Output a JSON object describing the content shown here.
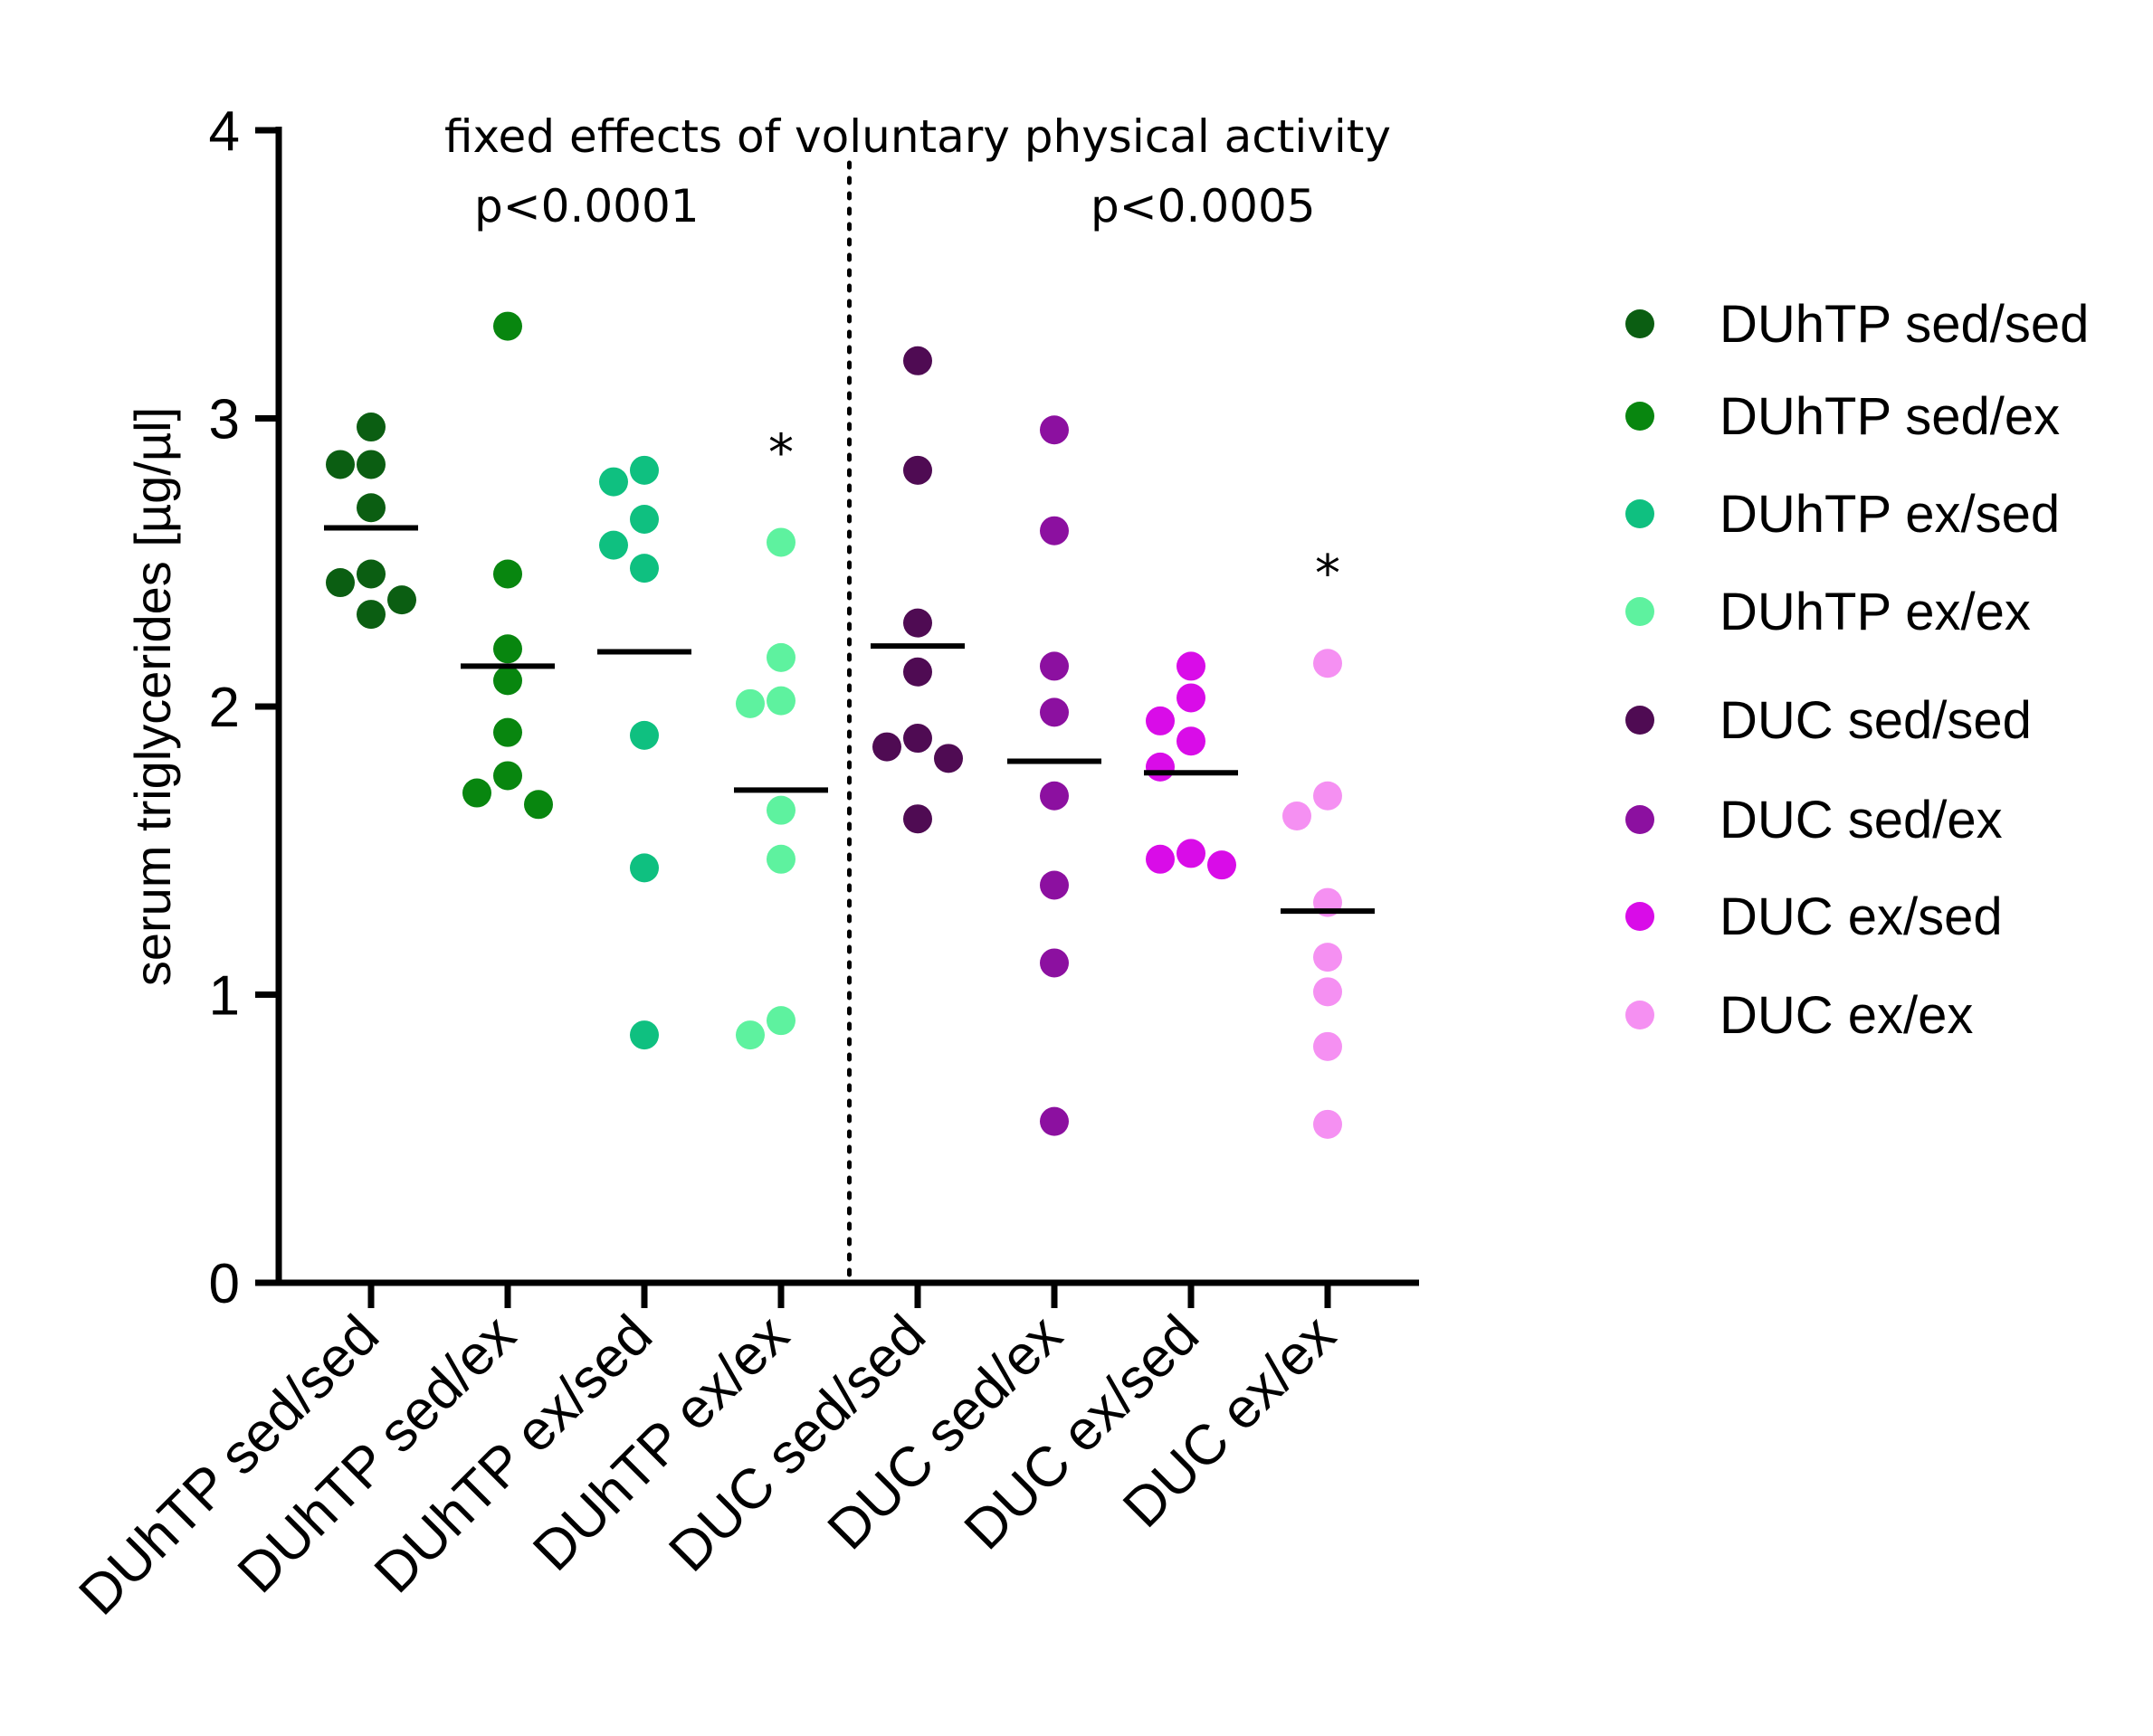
{
  "chart_data": {
    "type": "scatter",
    "title": "",
    "xlabel": "",
    "ylabel": "serum triglycerides [µg/µl]",
    "ylim": [
      0,
      4
    ],
    "yticks": [
      "0",
      "1",
      "2",
      "3",
      "4"
    ],
    "categories": [
      "DUhTP sed/sed",
      "DUhTP sed/ex",
      "DUhTP ex/sed",
      "DUhTP ex/ex",
      "DUC sed/sed",
      "DUC sed/ex",
      "DUC ex/sed",
      "DUC ex/ex"
    ],
    "series": [
      {
        "name": "DUhTP sed/sed",
        "color": "#0b5e12",
        "points": [
          2.97,
          2.84,
          2.84,
          2.69,
          2.46,
          2.43,
          2.37,
          2.32
        ],
        "mean": 2.62
      },
      {
        "name": "DUhTP sed/ex",
        "color": "#08860f",
        "points": [
          3.32,
          2.46,
          2.2,
          2.09,
          1.91,
          1.76,
          1.7,
          1.66
        ],
        "mean": 2.14
      },
      {
        "name": "DUhTP ex/sed",
        "color": "#0fc080",
        "points": [
          2.82,
          2.78,
          2.65,
          2.56,
          2.48,
          1.9,
          1.44,
          0.86
        ],
        "mean": 2.19
      },
      {
        "name": "DUhTP ex/ex",
        "color": "#5ef29f",
        "points": [
          2.57,
          2.17,
          2.02,
          2.01,
          1.64,
          1.47,
          0.91,
          0.86
        ],
        "mean": 1.71
      },
      {
        "name": "DUC sed/sed",
        "color": "#4f0b53",
        "points": [
          3.2,
          2.82,
          2.29,
          2.12,
          1.89,
          1.86,
          1.82,
          1.61
        ],
        "mean": 2.21
      },
      {
        "name": "DUC sed/ex",
        "color": "#8c10a0",
        "points": [
          2.96,
          2.61,
          2.14,
          1.98,
          1.69,
          1.38,
          1.11,
          0.56
        ],
        "mean": 1.81
      },
      {
        "name": "DUC ex/sed",
        "color": "#d90ce8",
        "points": [
          2.14,
          2.03,
          1.95,
          1.88,
          1.79,
          1.49,
          1.47,
          1.45
        ],
        "mean": 1.77
      },
      {
        "name": "DUC ex/ex",
        "color": "#f590f2",
        "points": [
          2.15,
          1.69,
          1.62,
          1.32,
          1.13,
          1.01,
          0.82,
          0.55
        ],
        "mean": 1.29
      }
    ],
    "annotations": {
      "title_text": "fixed effects of voluntary physical activity",
      "p_left": "p<0.0001",
      "p_right": "p<0.0005",
      "star_label": "*",
      "stars_on": [
        "DUhTP ex/ex",
        "DUC ex/ex"
      ]
    },
    "legend_position": "right"
  }
}
